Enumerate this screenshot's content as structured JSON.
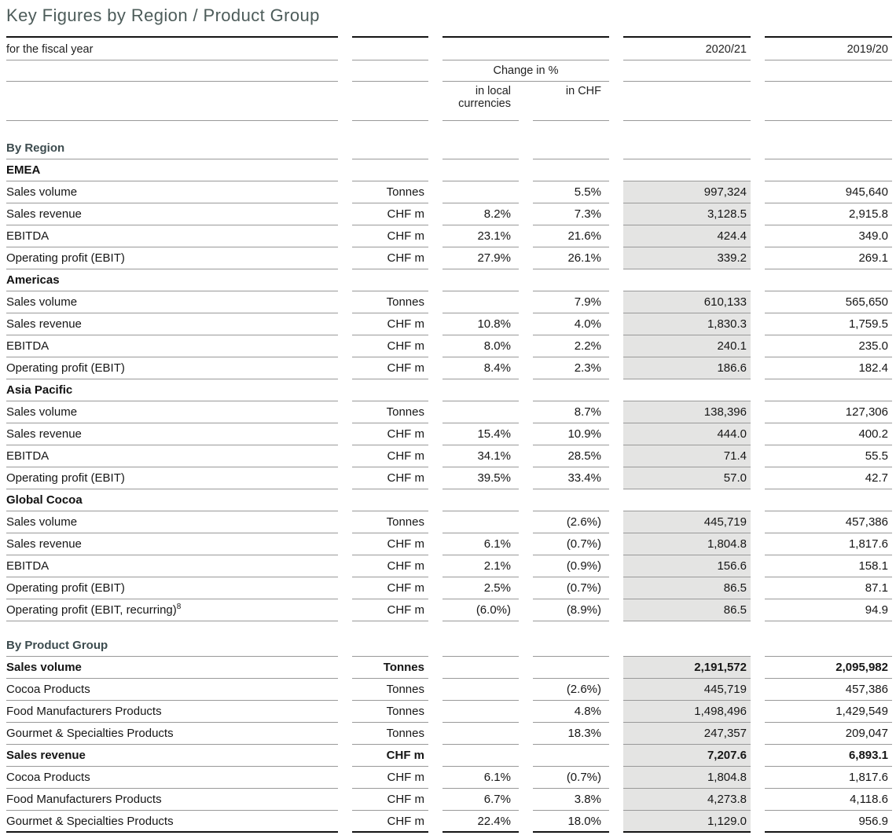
{
  "title": "Key Figures by Region / Product Group",
  "colors": {
    "title_accent": "#4d5c5a",
    "section_heading": "#3d4c4f",
    "highlight_column": "#e4e4e3",
    "thin_rule": "#999999",
    "thick_rule": "#141414"
  },
  "table": {
    "header": {
      "fiscal_label": "for the fiscal year",
      "col_2021": "2020/21",
      "col_2020": "2019/20",
      "change_group": "Change in %",
      "sub_local": "in local currencies",
      "sub_chf": "in CHF"
    },
    "rows": [
      {
        "type": "heading",
        "label": "By Region"
      },
      {
        "type": "subhead",
        "label": "EMEA"
      },
      {
        "type": "data",
        "label": "Sales volume",
        "unit": "Tonnes",
        "local": "",
        "chf": "5.5%",
        "y2021": "997,324",
        "y2020": "945,640"
      },
      {
        "type": "data",
        "label": "Sales revenue",
        "unit": "CHF m",
        "local": "8.2%",
        "chf": "7.3%",
        "y2021": "3,128.5",
        "y2020": "2,915.8"
      },
      {
        "type": "data",
        "label": "EBITDA",
        "unit": "CHF m",
        "local": "23.1%",
        "chf": "21.6%",
        "y2021": "424.4",
        "y2020": "349.0"
      },
      {
        "type": "data",
        "label": "Operating profit (EBIT)",
        "unit": "CHF m",
        "local": "27.9%",
        "chf": "26.1%",
        "y2021": "339.2",
        "y2020": "269.1"
      },
      {
        "type": "subhead",
        "label": "Americas"
      },
      {
        "type": "data",
        "label": "Sales volume",
        "unit": "Tonnes",
        "local": "",
        "chf": "7.9%",
        "y2021": "610,133",
        "y2020": "565,650"
      },
      {
        "type": "data",
        "label": "Sales revenue",
        "unit": "CHF m",
        "local": "10.8%",
        "chf": "4.0%",
        "y2021": "1,830.3",
        "y2020": "1,759.5"
      },
      {
        "type": "data",
        "label": "EBITDA",
        "unit": "CHF m",
        "local": "8.0%",
        "chf": "2.2%",
        "y2021": "240.1",
        "y2020": "235.0"
      },
      {
        "type": "data",
        "label": "Operating profit (EBIT)",
        "unit": "CHF m",
        "local": "8.4%",
        "chf": "2.3%",
        "y2021": "186.6",
        "y2020": "182.4"
      },
      {
        "type": "subhead",
        "label": "Asia Pacific"
      },
      {
        "type": "data",
        "label": "Sales volume",
        "unit": "Tonnes",
        "local": "",
        "chf": "8.7%",
        "y2021": "138,396",
        "y2020": "127,306"
      },
      {
        "type": "data",
        "label": "Sales revenue",
        "unit": "CHF m",
        "local": "15.4%",
        "chf": "10.9%",
        "y2021": "444.0",
        "y2020": "400.2"
      },
      {
        "type": "data",
        "label": "EBITDA",
        "unit": "CHF m",
        "local": "34.1%",
        "chf": "28.5%",
        "y2021": "71.4",
        "y2020": "55.5"
      },
      {
        "type": "data",
        "label": "Operating profit (EBIT)",
        "unit": "CHF m",
        "local": "39.5%",
        "chf": "33.4%",
        "y2021": "57.0",
        "y2020": "42.7"
      },
      {
        "type": "subhead",
        "label": "Global Cocoa"
      },
      {
        "type": "data",
        "label": "Sales volume",
        "unit": "Tonnes",
        "local": "",
        "chf": "(2.6%)",
        "y2021": "445,719",
        "y2020": "457,386"
      },
      {
        "type": "data",
        "label": "Sales revenue",
        "unit": "CHF m",
        "local": "6.1%",
        "chf": "(0.7%)",
        "y2021": "1,804.8",
        "y2020": "1,817.6"
      },
      {
        "type": "data",
        "label": "EBITDA",
        "unit": "CHF m",
        "local": "2.1%",
        "chf": "(0.9%)",
        "y2021": "156.6",
        "y2020": "158.1"
      },
      {
        "type": "data",
        "label": "Operating profit (EBIT)",
        "unit": "CHF m",
        "local": "2.5%",
        "chf": "(0.7%)",
        "y2021": "86.5",
        "y2020": "87.1"
      },
      {
        "type": "data",
        "label": "Operating profit (EBIT, recurring)",
        "sup": "8",
        "unit": "CHF m",
        "local": "(6.0%)",
        "chf": "(8.9%)",
        "y2021": "86.5",
        "y2020": "94.9"
      },
      {
        "type": "spacer"
      },
      {
        "type": "heading",
        "label": "By Product Group"
      },
      {
        "type": "data",
        "bold": true,
        "label": "Sales volume",
        "unit": "Tonnes",
        "local": "",
        "chf": "",
        "y2021": "2,191,572",
        "y2020": "2,095,982"
      },
      {
        "type": "data",
        "label": "Cocoa Products",
        "unit": "Tonnes",
        "local": "",
        "chf": "(2.6%)",
        "y2021": "445,719",
        "y2020": "457,386"
      },
      {
        "type": "data",
        "label": "Food Manufacturers Products",
        "unit": "Tonnes",
        "local": "",
        "chf": "4.8%",
        "y2021": "1,498,496",
        "y2020": "1,429,549"
      },
      {
        "type": "data",
        "label": "Gourmet & Specialties Products",
        "unit": "Tonnes",
        "local": "",
        "chf": "18.3%",
        "y2021": "247,357",
        "y2020": "209,047"
      },
      {
        "type": "data",
        "bold": true,
        "label": "Sales revenue",
        "unit": "CHF m",
        "local": "",
        "chf": "",
        "y2021": "7,207.6",
        "y2020": "6,893.1"
      },
      {
        "type": "data",
        "label": "Cocoa Products",
        "unit": "CHF m",
        "local": "6.1%",
        "chf": "(0.7%)",
        "y2021": "1,804.8",
        "y2020": "1,817.6"
      },
      {
        "type": "data",
        "label": "Food Manufacturers Products",
        "unit": "CHF m",
        "local": "6.7%",
        "chf": "3.8%",
        "y2021": "4,273.8",
        "y2020": "4,118.6"
      },
      {
        "type": "data",
        "label": "Gourmet & Specialties Products",
        "unit": "CHF m",
        "local": "22.4%",
        "chf": "18.0%",
        "y2021": "1,129.0",
        "y2020": "956.9"
      }
    ]
  }
}
